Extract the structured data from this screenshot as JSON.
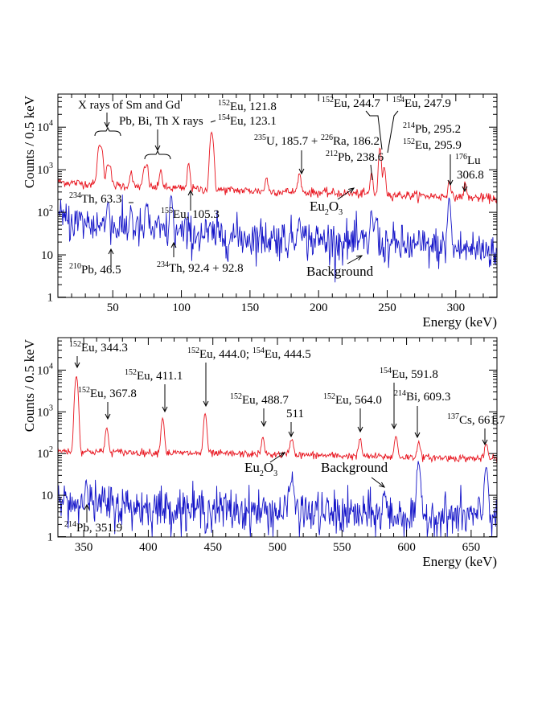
{
  "chart_data": [
    {
      "type": "line",
      "xlabel": "Energy (keV)",
      "ylabel": "Counts / 0.5 keV",
      "xlim": [
        10,
        330
      ],
      "ylim": [
        1,
        60000
      ],
      "yscale": "log",
      "grid": false,
      "xticks": [
        50,
        100,
        150,
        200,
        250,
        300
      ],
      "yticks": [
        {
          "value": 1,
          "label": "1"
        },
        {
          "value": 10,
          "label": "10"
        },
        {
          "value": 100,
          "label": "10",
          "exp": "2"
        },
        {
          "value": 1000,
          "label": "10",
          "exp": "3"
        },
        {
          "value": 10000,
          "label": "10",
          "exp": "4"
        }
      ],
      "series": [
        {
          "name": "Eu2O3",
          "label": {
            "main": "Eu",
            "sub1": "2",
            "mid": "O",
            "sub2": "3"
          },
          "color": "#e8141e",
          "base": [
            [
              10,
              520
            ],
            [
              50,
              430
            ],
            [
              100,
              360
            ],
            [
              150,
              320
            ],
            [
              200,
              290
            ],
            [
              250,
              260
            ],
            [
              300,
              230
            ],
            [
              330,
              210
            ]
          ],
          "peaks": [
            {
              "e": 40,
              "h": 3000,
              "w": 1.0
            },
            {
              "e": 42,
              "h": 2400,
              "w": 0.9
            },
            {
              "e": 46,
              "h": 900,
              "w": 0.8
            },
            {
              "e": 48,
              "h": 800,
              "w": 0.8
            },
            {
              "e": 63.3,
              "h": 500,
              "w": 0.8
            },
            {
              "e": 73,
              "h": 700,
              "w": 0.8
            },
            {
              "e": 75,
              "h": 900,
              "w": 0.8
            },
            {
              "e": 85,
              "h": 650,
              "w": 0.8
            },
            {
              "e": 105.3,
              "h": 1100,
              "w": 0.8
            },
            {
              "e": 121.8,
              "h": 6500,
              "w": 0.9
            },
            {
              "e": 123.1,
              "h": 2200,
              "w": 0.8
            },
            {
              "e": 162,
              "h": 360,
              "w": 0.8
            },
            {
              "e": 186,
              "h": 500,
              "w": 1.0
            },
            {
              "e": 238.6,
              "h": 600,
              "w": 0.8
            },
            {
              "e": 244.7,
              "h": 3000,
              "w": 0.8
            },
            {
              "e": 247.9,
              "h": 900,
              "w": 0.8
            },
            {
              "e": 295.2,
              "h": 340,
              "w": 0.8
            },
            {
              "e": 306.8,
              "h": 260,
              "w": 0.8
            }
          ],
          "noise": 0.12
        },
        {
          "name": "Background",
          "color": "#1414c8",
          "base": [
            [
              10,
              70
            ],
            [
              50,
              45
            ],
            [
              100,
              32
            ],
            [
              150,
              26
            ],
            [
              200,
              22
            ],
            [
              250,
              17
            ],
            [
              300,
              14
            ],
            [
              330,
              13
            ]
          ],
          "peaks": [
            {
              "e": 46.5,
              "h": 160,
              "w": 0.7
            },
            {
              "e": 63.3,
              "h": 90,
              "w": 0.7
            },
            {
              "e": 75,
              "h": 110,
              "w": 0.8
            },
            {
              "e": 92.6,
              "h": 200,
              "w": 0.8
            },
            {
              "e": 186,
              "h": 60,
              "w": 0.8
            },
            {
              "e": 238.6,
              "h": 80,
              "w": 0.8
            },
            {
              "e": 242,
              "h": 60,
              "w": 0.8
            },
            {
              "e": 295.2,
              "h": 200,
              "w": 0.8
            }
          ],
          "noise": 0.55
        }
      ],
      "annotations": [
        {
          "text": "X rays of Sm and Gd"
        },
        {
          "text": "Pb, Bi, Th X rays"
        },
        {
          "sup": "152",
          "text": "Eu, 121.8"
        },
        {
          "sup": "154",
          "text": "Eu, 123.1"
        },
        {
          "pre": "235",
          "text": "U, 185.7 + ",
          "sup": "226",
          "text2": "Ra, 186.2"
        },
        {
          "sup": "152",
          "text": "Eu, 244.7"
        },
        {
          "sup": "154",
          "text": "Eu, 247.9"
        },
        {
          "sup": "212",
          "text": "Pb, 238.6"
        },
        {
          "sup": "214",
          "text": "Pb, 295.2"
        },
        {
          "sup": "152",
          "text": "Eu, 295.9"
        },
        {
          "sup": "176",
          "text": "Lu"
        },
        {
          "text": "306.8"
        },
        {
          "sup": "234",
          "text": "Th, 63.3"
        },
        {
          "sup": "155",
          "text": "Eu, 105.3"
        },
        {
          "sup": "210",
          "text": "Pb, 46.5"
        },
        {
          "sup": "234",
          "text": "Th, 92.4 + 92.8"
        }
      ]
    },
    {
      "type": "line",
      "xlabel": "Energy (keV)",
      "ylabel": "Counts / 0.5 keV",
      "xlim": [
        330,
        670
      ],
      "ylim": [
        1,
        60000
      ],
      "yscale": "log",
      "grid": false,
      "xticks": [
        350,
        400,
        450,
        500,
        550,
        600,
        650
      ],
      "yticks": [
        {
          "value": 1,
          "label": "1"
        },
        {
          "value": 10,
          "label": "10"
        },
        {
          "value": 100,
          "label": "10",
          "exp": "2"
        },
        {
          "value": 1000,
          "label": "10",
          "exp": "3"
        },
        {
          "value": 10000,
          "label": "10",
          "exp": "4"
        }
      ],
      "series": [
        {
          "name": "Eu2O3",
          "label": {
            "main": "Eu",
            "sub1": "2",
            "mid": "O",
            "sub2": "3"
          },
          "color": "#e8141e",
          "base": [
            [
              330,
              115
            ],
            [
              400,
              105
            ],
            [
              450,
              100
            ],
            [
              500,
              95
            ],
            [
              550,
              88
            ],
            [
              600,
              82
            ],
            [
              670,
              75
            ]
          ],
          "peaks": [
            {
              "e": 344.3,
              "h": 7000,
              "w": 1.0
            },
            {
              "e": 367.8,
              "h": 300,
              "w": 1.0
            },
            {
              "e": 411.1,
              "h": 600,
              "w": 1.0
            },
            {
              "e": 444.0,
              "h": 800,
              "w": 1.0
            },
            {
              "e": 488.7,
              "h": 140,
              "w": 1.0
            },
            {
              "e": 511,
              "h": 130,
              "w": 1.2
            },
            {
              "e": 564.0,
              "h": 140,
              "w": 1.0
            },
            {
              "e": 591.8,
              "h": 180,
              "w": 1.0
            },
            {
              "e": 609.3,
              "h": 110,
              "w": 1.0
            },
            {
              "e": 661.7,
              "h": 95,
              "w": 1.0
            }
          ],
          "noise": 0.1
        },
        {
          "name": "Background",
          "color": "#1414c8",
          "base": [
            [
              330,
              7
            ],
            [
              400,
              5
            ],
            [
              450,
              4.5
            ],
            [
              500,
              4
            ],
            [
              550,
              3.5
            ],
            [
              600,
              3.2
            ],
            [
              670,
              3
            ]
          ],
          "peaks": [
            {
              "e": 351.9,
              "h": 20,
              "w": 0.8
            },
            {
              "e": 511,
              "h": 18,
              "w": 1.5
            },
            {
              "e": 583,
              "h": 8,
              "w": 1.0
            },
            {
              "e": 609.3,
              "h": 55,
              "w": 1.0
            },
            {
              "e": 661.7,
              "h": 45,
              "w": 1.0
            }
          ],
          "noise": 0.6
        }
      ],
      "annotations": [
        {
          "sup": "152",
          "text": "Eu, 344.3"
        },
        {
          "sup": "152",
          "text": "Eu, 367.8"
        },
        {
          "sup": "152",
          "text": "Eu, 411.1"
        },
        {
          "sup": "152",
          "text": "Eu, 444.0; ",
          "sup2": "154",
          "text2": "Eu, 444.5"
        },
        {
          "sup": "152",
          "text": "Eu, 488.7"
        },
        {
          "text": "511"
        },
        {
          "sup": "152",
          "text": "Eu, 564.0"
        },
        {
          "sup": "154",
          "text": "Eu, 591.8"
        },
        {
          "sup": "214",
          "text": "Bi, 609.3"
        },
        {
          "sup": "137",
          "text": "Cs, 661.7"
        },
        {
          "sup": "214",
          "text": "Pb, 351.9"
        }
      ]
    }
  ]
}
